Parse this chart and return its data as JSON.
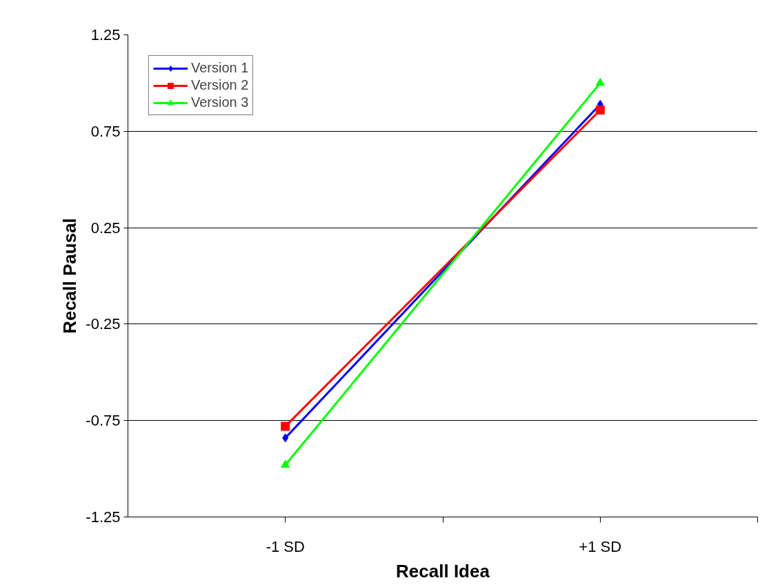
{
  "chart_data": {
    "type": "line",
    "xlabel": "Recall Idea",
    "ylabel": "Recall Pausal",
    "x": [
      -1,
      1
    ],
    "series": [
      {
        "name": "Version 1",
        "color": "#0000ff",
        "marker": "diamond",
        "values": [
          -0.84,
          0.89
        ]
      },
      {
        "name": "Version 2",
        "color": "#ff0000",
        "marker": "square",
        "values": [
          -0.78,
          0.86
        ]
      },
      {
        "name": "Version 3",
        "color": "#00ff00",
        "marker": "triangle",
        "values": [
          -0.98,
          1.0
        ]
      }
    ],
    "xlim": [
      -2,
      2
    ],
    "xticks": [
      {
        "value": -1,
        "label": "-1 SD"
      },
      {
        "value": 0,
        "label": null
      },
      {
        "value": 1,
        "label": "+1 SD"
      },
      {
        "value": 2,
        "label": null
      }
    ],
    "ylim": [
      -1.25,
      1.25
    ],
    "yticks": [
      -1.25,
      -0.75,
      -0.25,
      0.25,
      0.75,
      1.25
    ],
    "grid": "y",
    "legend": "top left"
  }
}
